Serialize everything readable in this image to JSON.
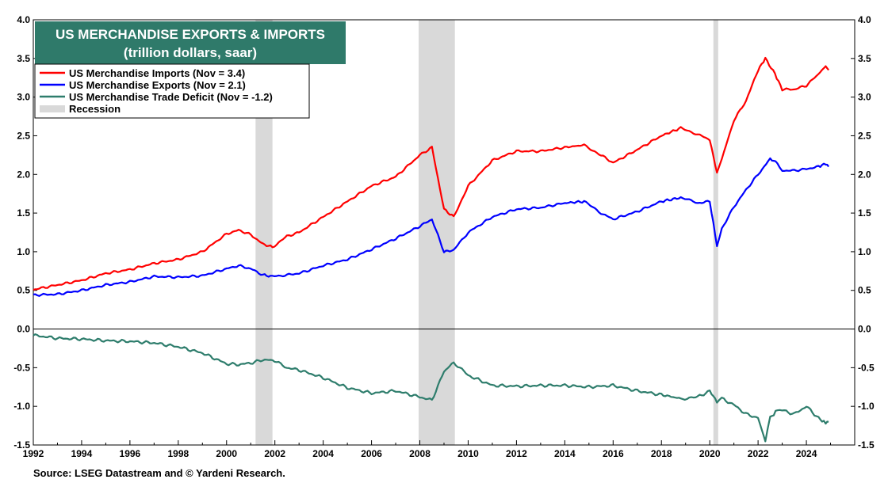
{
  "chart_data": {
    "type": "line",
    "title": "US MERCHANDISE EXPORTS & IMPORTS",
    "subtitle": "(trillion dollars, saar)",
    "source": "Source: LSEG Datastream and © Yardeni Research.",
    "xlim": [
      1992,
      2026
    ],
    "ylim": [
      -1.5,
      4.0
    ],
    "yticks": [
      "4.0",
      "3.5",
      "3.0",
      "2.5",
      "2.0",
      "1.5",
      "1.0",
      "0.5",
      "0.0",
      "-0.5",
      "-1.0",
      "-1.5"
    ],
    "ytick_values": [
      4.0,
      3.5,
      3.0,
      2.5,
      2.0,
      1.5,
      1.0,
      0.5,
      0.0,
      -0.5,
      -1.0,
      -1.5
    ],
    "xticks": [
      "1992",
      "1994",
      "1996",
      "1998",
      "2000",
      "2002",
      "2004",
      "2006",
      "2008",
      "2010",
      "2012",
      "2014",
      "2016",
      "2018",
      "2020",
      "2022",
      "2024"
    ],
    "xtick_values": [
      1992,
      1994,
      1996,
      1998,
      2000,
      2002,
      2004,
      2006,
      2008,
      2010,
      2012,
      2014,
      2016,
      2018,
      2020,
      2022,
      2024
    ],
    "legend_position": "top-left",
    "recession_label": "Recession",
    "recessions": [
      [
        2001.2,
        2001.9
      ],
      [
        2007.95,
        2009.45
      ],
      [
        2020.15,
        2020.35
      ]
    ],
    "series": [
      {
        "name": "US Merchandise Imports (Nov = 3.4)",
        "color": "#ff0000",
        "x": [
          1992,
          1993,
          1994,
          1995,
          1996,
          1997,
          1998,
          1999,
          2000,
          2000.5,
          2001,
          2001.5,
          2001.9,
          2002.5,
          2003,
          2004,
          2005,
          2006,
          2007,
          2008,
          2008.5,
          2009,
          2009.4,
          2010,
          2011,
          2012,
          2013,
          2014,
          2014.8,
          2015.5,
          2016,
          2017,
          2018,
          2018.8,
          2019.5,
          2020,
          2020.3,
          2020.5,
          2021,
          2021.5,
          2022,
          2022.3,
          2022.7,
          2023,
          2023.5,
          2024,
          2024.5,
          2024.8,
          2024.92
        ],
        "y": [
          0.51,
          0.57,
          0.63,
          0.72,
          0.77,
          0.85,
          0.9,
          1.0,
          1.23,
          1.28,
          1.22,
          1.1,
          1.06,
          1.2,
          1.25,
          1.45,
          1.65,
          1.85,
          1.97,
          2.25,
          2.35,
          1.55,
          1.45,
          1.85,
          2.18,
          2.3,
          2.3,
          2.35,
          2.38,
          2.25,
          2.15,
          2.32,
          2.5,
          2.6,
          2.52,
          2.45,
          2.02,
          2.2,
          2.7,
          2.95,
          3.35,
          3.5,
          3.3,
          3.1,
          3.1,
          3.15,
          3.3,
          3.4,
          3.35
        ]
      },
      {
        "name": "US Merchandise Exports (Nov = 2.1)",
        "color": "#0000ff",
        "x": [
          1992,
          1993,
          1994,
          1995,
          1996,
          1997,
          1998,
          1999,
          2000,
          2000.5,
          2001,
          2001.5,
          2001.9,
          2002.5,
          2003,
          2004,
          2005,
          2006,
          2007,
          2008,
          2008.5,
          2009,
          2009.4,
          2010,
          2011,
          2012,
          2013,
          2014,
          2014.8,
          2015.5,
          2016,
          2017,
          2018,
          2018.8,
          2019.5,
          2020,
          2020.3,
          2020.5,
          2021,
          2021.5,
          2022,
          2022.5,
          2022.8,
          2023,
          2023.5,
          2024,
          2024.5,
          2024.8,
          2024.92
        ],
        "y": [
          0.44,
          0.45,
          0.5,
          0.57,
          0.61,
          0.68,
          0.67,
          0.69,
          0.78,
          0.82,
          0.78,
          0.7,
          0.68,
          0.7,
          0.72,
          0.82,
          0.9,
          1.03,
          1.17,
          1.33,
          1.42,
          1.0,
          1.02,
          1.25,
          1.45,
          1.55,
          1.57,
          1.63,
          1.65,
          1.5,
          1.42,
          1.52,
          1.65,
          1.7,
          1.63,
          1.65,
          1.08,
          1.3,
          1.58,
          1.8,
          2.0,
          2.2,
          2.15,
          2.05,
          2.05,
          2.07,
          2.1,
          2.14,
          2.1
        ]
      },
      {
        "name": "US Merchandise Trade Deficit (Nov = -1.2)",
        "color": "#2e7d6c",
        "x": [
          1992,
          1993,
          1994,
          1995,
          1996,
          1997,
          1998,
          1999,
          2000,
          2000.5,
          2001,
          2001.5,
          2001.9,
          2002.5,
          2003,
          2004,
          2005,
          2006,
          2007,
          2008,
          2008.5,
          2009,
          2009.4,
          2010,
          2011,
          2012,
          2013,
          2014,
          2015,
          2016,
          2017,
          2018,
          2018.8,
          2019.5,
          2020,
          2020.3,
          2020.5,
          2021,
          2021.5,
          2022,
          2022.3,
          2022.5,
          2022.8,
          2023,
          2023.5,
          2024,
          2024.5,
          2024.8,
          2024.92
        ],
        "y": [
          -0.08,
          -0.12,
          -0.13,
          -0.15,
          -0.16,
          -0.18,
          -0.23,
          -0.31,
          -0.45,
          -0.46,
          -0.44,
          -0.4,
          -0.4,
          -0.5,
          -0.53,
          -0.63,
          -0.76,
          -0.83,
          -0.8,
          -0.88,
          -0.92,
          -0.55,
          -0.43,
          -0.6,
          -0.73,
          -0.74,
          -0.73,
          -0.73,
          -0.75,
          -0.73,
          -0.8,
          -0.85,
          -0.9,
          -0.88,
          -0.8,
          -0.94,
          -0.9,
          -0.98,
          -1.1,
          -1.15,
          -1.45,
          -1.15,
          -1.05,
          -1.05,
          -1.1,
          -1.0,
          -1.15,
          -1.22,
          -1.2
        ]
      }
    ]
  }
}
